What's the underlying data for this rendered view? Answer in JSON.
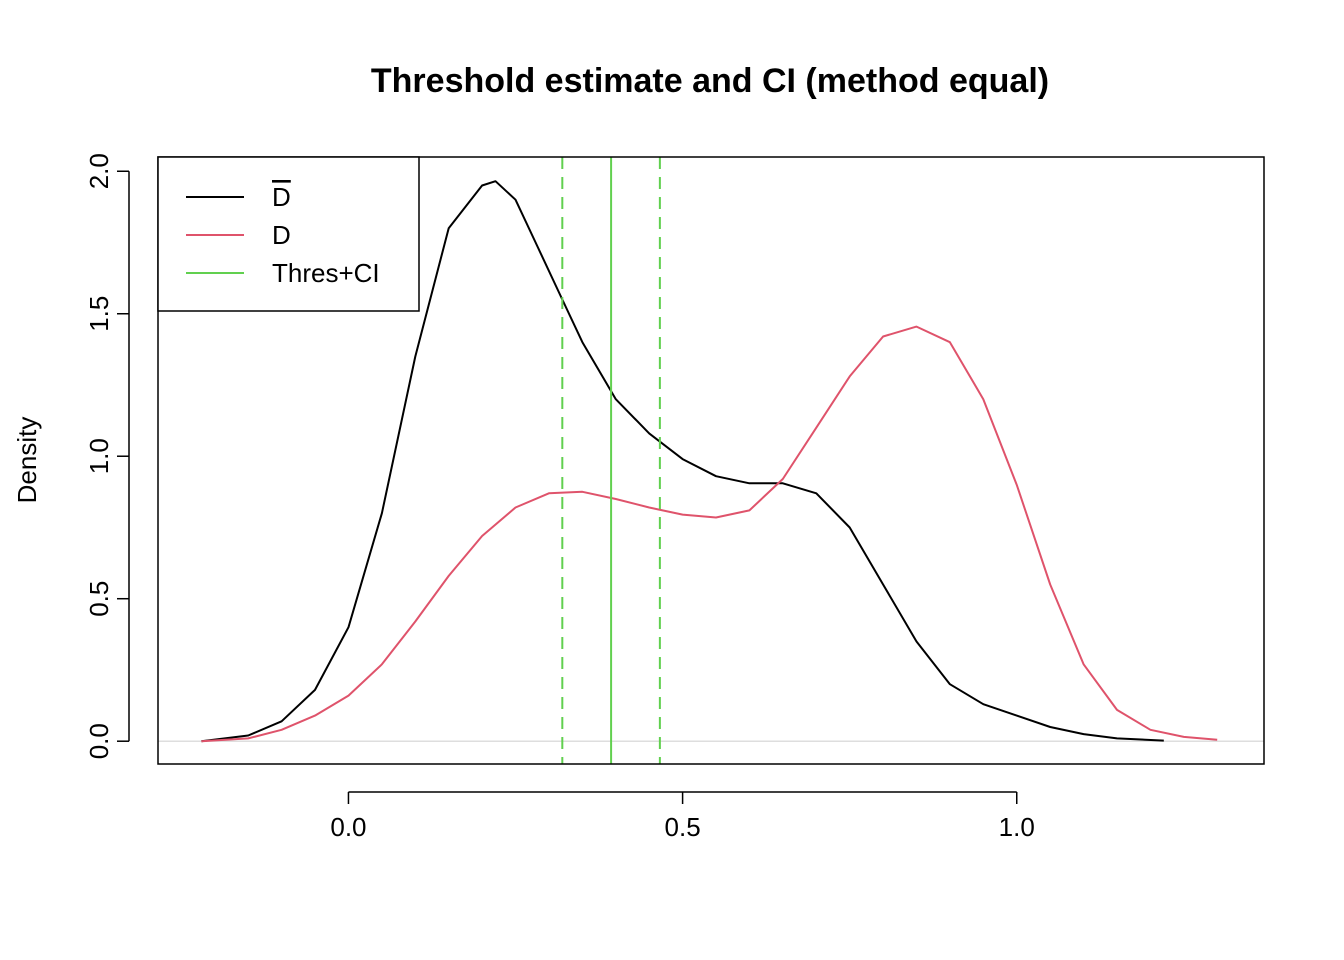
{
  "chart_data": {
    "type": "line",
    "title": "Threshold estimate and CI (method equal)",
    "xlabel": "",
    "ylabel": "Density",
    "xlim": [
      -0.285,
      1.37
    ],
    "ylim": [
      -0.08,
      2.05
    ],
    "x_ticks": [
      0.0,
      0.5,
      1.0
    ],
    "x_tick_labels": [
      "0.0",
      "0.5",
      "1.0"
    ],
    "y_ticks": [
      0.0,
      0.5,
      1.0,
      1.5,
      2.0
    ],
    "y_tick_labels": [
      "0.0",
      "0.5",
      "1.0",
      "1.5",
      "2.0"
    ],
    "grid": false,
    "legend_position": "top-left",
    "series": [
      {
        "name": "D̄",
        "color": "#000000",
        "style": "solid",
        "x": [
          -0.22,
          -0.15,
          -0.1,
          -0.05,
          0.0,
          0.05,
          0.1,
          0.15,
          0.2,
          0.22,
          0.25,
          0.28,
          0.32,
          0.35,
          0.4,
          0.45,
          0.5,
          0.55,
          0.6,
          0.65,
          0.7,
          0.75,
          0.8,
          0.85,
          0.9,
          0.95,
          1.0,
          1.05,
          1.1,
          1.15,
          1.22
        ],
        "y": [
          0.0,
          0.02,
          0.07,
          0.18,
          0.4,
          0.8,
          1.35,
          1.8,
          1.95,
          1.965,
          1.9,
          1.75,
          1.55,
          1.4,
          1.2,
          1.08,
          0.99,
          0.93,
          0.905,
          0.905,
          0.87,
          0.75,
          0.55,
          0.35,
          0.2,
          0.13,
          0.09,
          0.05,
          0.025,
          0.01,
          0.002
        ]
      },
      {
        "name": "D",
        "color": "#DF536B",
        "style": "solid",
        "x": [
          -0.22,
          -0.15,
          -0.1,
          -0.05,
          0.0,
          0.05,
          0.1,
          0.15,
          0.2,
          0.25,
          0.3,
          0.35,
          0.4,
          0.45,
          0.5,
          0.55,
          0.6,
          0.65,
          0.7,
          0.75,
          0.8,
          0.85,
          0.9,
          0.95,
          1.0,
          1.05,
          1.1,
          1.15,
          1.2,
          1.25,
          1.3
        ],
        "y": [
          0.0,
          0.01,
          0.04,
          0.09,
          0.16,
          0.27,
          0.42,
          0.58,
          0.72,
          0.82,
          0.87,
          0.875,
          0.85,
          0.82,
          0.795,
          0.785,
          0.81,
          0.92,
          1.1,
          1.28,
          1.42,
          1.455,
          1.4,
          1.2,
          0.9,
          0.55,
          0.27,
          0.11,
          0.04,
          0.015,
          0.005
        ]
      }
    ],
    "vlines": [
      {
        "name": "Thres+CI",
        "role": "threshold",
        "x": 0.393,
        "color": "#61D04F",
        "style": "solid"
      },
      {
        "name": "",
        "role": "ci-lower",
        "x": 0.32,
        "color": "#61D04F",
        "style": "dashed"
      },
      {
        "name": "",
        "role": "ci-upper",
        "x": 0.466,
        "color": "#61D04F",
        "style": "dashed"
      }
    ],
    "hline": {
      "y": 0,
      "color": "#D3D3D3"
    },
    "legend": [
      {
        "label": "D",
        "overline": true,
        "color": "#000000"
      },
      {
        "label": "D",
        "overline": false,
        "color": "#DF536B"
      },
      {
        "label": "Thres+CI",
        "overline": false,
        "color": "#61D04F"
      }
    ]
  }
}
